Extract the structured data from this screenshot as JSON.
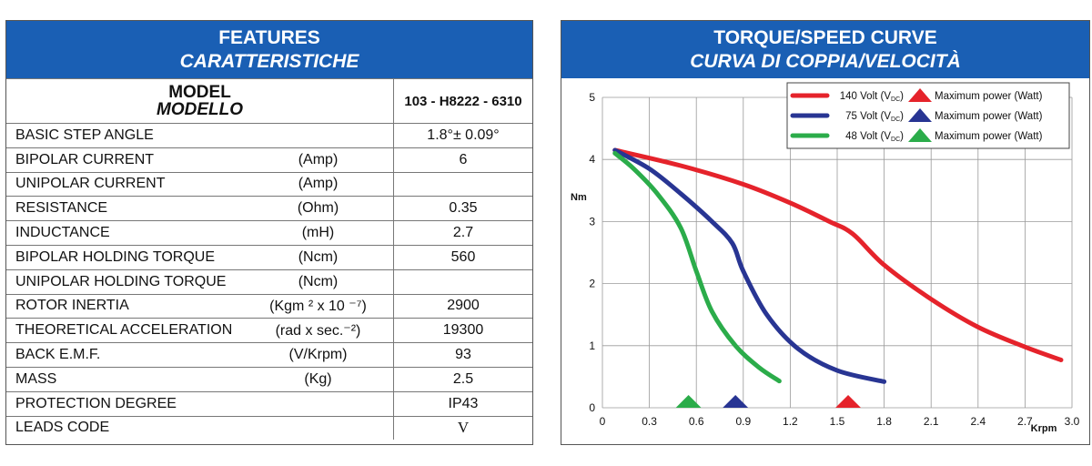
{
  "features": {
    "title": "FEATURES",
    "title_it": "CARATTERISTICHE",
    "model_label": "MODEL",
    "model_label_it": "MODELLO",
    "model_value": "103 - H8222 - 6310",
    "rows": [
      {
        "name": "BASIC STEP ANGLE",
        "unit": "",
        "value": "1.8°± 0.09°"
      },
      {
        "name": "BIPOLAR CURRENT",
        "unit": "(Amp)",
        "value": "6"
      },
      {
        "name": "UNIPOLAR CURRENT",
        "unit": "(Amp)",
        "value": ""
      },
      {
        "name": "RESISTANCE",
        "unit": "(Ohm)",
        "value": "0.35"
      },
      {
        "name": "INDUCTANCE",
        "unit": "(mH)",
        "value": "2.7"
      },
      {
        "name": "BIPOLAR HOLDING TORQUE",
        "unit": "(Ncm)",
        "value": "560"
      },
      {
        "name": "UNIPOLAR HOLDING TORQUE",
        "unit": "(Ncm)",
        "value": ""
      },
      {
        "name": "ROTOR INERTIA",
        "unit": "(Kgm ² x 10 ⁻⁷)",
        "value": "2900"
      },
      {
        "name": "THEORETICAL ACCELERATION",
        "unit": "(rad x sec.⁻²)",
        "value": "19300"
      },
      {
        "name": "BACK E.M.F.",
        "unit": "(V/Krpm)",
        "value": "93"
      },
      {
        "name": "MASS",
        "unit": "(Kg)",
        "value": "2.5"
      },
      {
        "name": "PROTECTION DEGREE",
        "unit": "",
        "value": "IP43"
      },
      {
        "name": "LEADS CODE",
        "unit": "",
        "value": "V"
      }
    ]
  },
  "curve": {
    "title": "TORQUE/SPEED CURVE",
    "title_it": "CURVA DI COPPIA/VELOCITÀ"
  },
  "chart_data": {
    "type": "line",
    "ylabel": "Nm",
    "xlabel": "Krpm",
    "xlim": [
      0,
      3.0
    ],
    "ylim": [
      0,
      5
    ],
    "x_ticks": [
      "0",
      "0.3",
      "0.6",
      "0.9",
      "1.2",
      "1.5",
      "1.8",
      "2.1",
      "2.4",
      "2.7",
      "3.0"
    ],
    "y_ticks": [
      "0",
      "1",
      "2",
      "3",
      "4",
      "5"
    ],
    "grid": true,
    "legend_position": "top-right",
    "max_power_label": "Maximum power (Watt)",
    "series": [
      {
        "name": "140 Volt (VDC)",
        "volt": "140 Volt (V",
        "sub": "DC",
        "close": ")",
        "color": "#e5232b",
        "max_power_x": 1.57,
        "x": [
          0.08,
          0.5,
          0.9,
          1.2,
          1.45,
          1.6,
          1.8,
          2.1,
          2.4,
          2.7,
          2.93
        ],
        "y": [
          4.15,
          3.9,
          3.6,
          3.3,
          3.0,
          2.8,
          2.3,
          1.75,
          1.3,
          0.98,
          0.77
        ]
      },
      {
        "name": "75 Volt (VDC)",
        "volt": "75 Volt (V",
        "sub": "DC",
        "close": ")",
        "color": "#283593",
        "max_power_x": 0.85,
        "x": [
          0.08,
          0.3,
          0.5,
          0.7,
          0.83,
          0.9,
          1.05,
          1.25,
          1.5,
          1.8
        ],
        "y": [
          4.15,
          3.85,
          3.45,
          3.0,
          2.65,
          2.2,
          1.5,
          0.95,
          0.6,
          0.42
        ]
      },
      {
        "name": "48 Volt (VDC)",
        "volt": "48 Volt (V",
        "sub": "DC",
        "close": ")",
        "color": "#2bac4a",
        "max_power_x": 0.55,
        "x": [
          0.08,
          0.2,
          0.35,
          0.5,
          0.6,
          0.7,
          0.85,
          1.0,
          1.13
        ],
        "y": [
          4.1,
          3.85,
          3.45,
          2.9,
          2.2,
          1.55,
          1.0,
          0.65,
          0.43
        ]
      }
    ]
  }
}
